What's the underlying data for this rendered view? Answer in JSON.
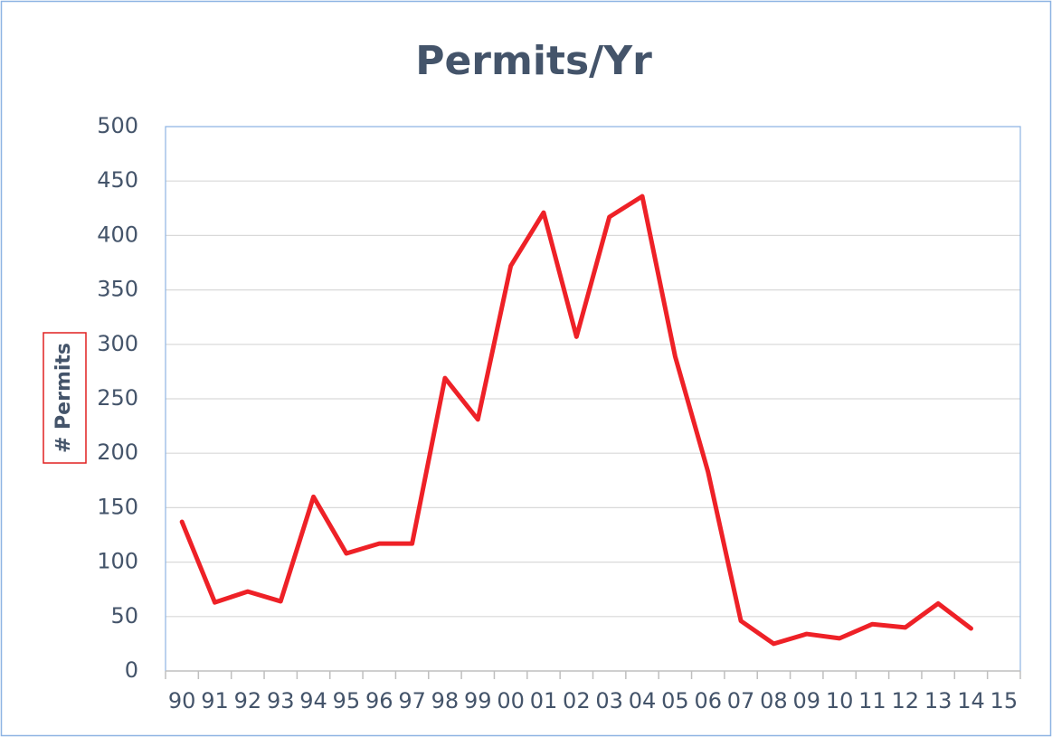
{
  "chart_data": {
    "type": "line",
    "title": "Permits/Yr",
    "y_label": "# Permits",
    "categories": [
      "90",
      "91",
      "92",
      "93",
      "94",
      "95",
      "96",
      "97",
      "98",
      "99",
      "00",
      "01",
      "02",
      "03",
      "04",
      "05",
      "06",
      "07",
      "08",
      "09",
      "10",
      "11",
      "12",
      "13",
      "14",
      "15"
    ],
    "series": [
      {
        "name": "Permits",
        "color": "#ee2127",
        "values": [
          137,
          63,
          73,
          64,
          160,
          108,
          117,
          117,
          269,
          231,
          372,
          421,
          307,
          417,
          436,
          289,
          183,
          46,
          25,
          34,
          30,
          43,
          40,
          62,
          39,
          null
        ]
      }
    ],
    "ylim": [
      0,
      500
    ],
    "yticks": [
      0,
      50,
      100,
      150,
      200,
      250,
      300,
      350,
      400,
      450,
      500
    ],
    "grid": true
  }
}
